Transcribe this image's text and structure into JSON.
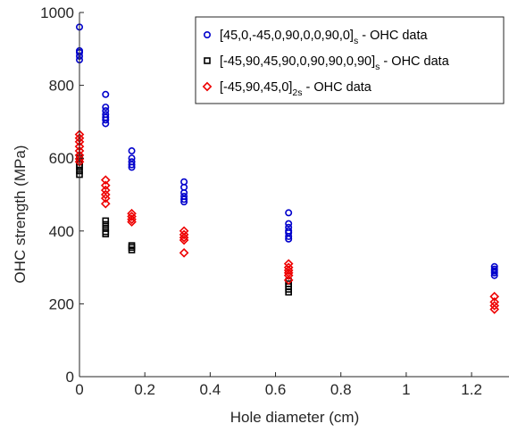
{
  "chart_data": {
    "type": "scatter",
    "xlabel": "Hole diameter (cm)",
    "ylabel": "OHC strength (MPa)",
    "xlim": [
      0,
      1.32
    ],
    "ylim": [
      0,
      1000
    ],
    "xticks": [
      0,
      0.2,
      0.4,
      0.6,
      0.8,
      1,
      1.2
    ],
    "xtick_labels": [
      "0",
      "0.2",
      "0.4",
      "0.6",
      "0.8",
      "1",
      "1.2"
    ],
    "yticks": [
      0,
      200,
      400,
      600,
      800,
      1000
    ],
    "ytick_labels": [
      "0",
      "200",
      "400",
      "600",
      "800",
      "1000"
    ],
    "grid": false,
    "legend_position": "top-right",
    "series": [
      {
        "name": "[45,0,-45,0,90,0,0,90,0]s - OHC data",
        "legend_main": "[45,0,-45,0,90,0,0,90,0]",
        "legend_sub": "s",
        "legend_suffix": " - OHC data",
        "marker": "circle",
        "color": "#0000cc",
        "points": [
          [
            0,
            960
          ],
          [
            0,
            895
          ],
          [
            0,
            890
          ],
          [
            0,
            880
          ],
          [
            0,
            870
          ],
          [
            0.08,
            775
          ],
          [
            0.08,
            740
          ],
          [
            0.08,
            730
          ],
          [
            0.08,
            720
          ],
          [
            0.08,
            712
          ],
          [
            0.08,
            705
          ],
          [
            0.08,
            695
          ],
          [
            0.16,
            620
          ],
          [
            0.16,
            600
          ],
          [
            0.16,
            590
          ],
          [
            0.16,
            582
          ],
          [
            0.16,
            575
          ],
          [
            0.32,
            535
          ],
          [
            0.32,
            520
          ],
          [
            0.32,
            505
          ],
          [
            0.32,
            495
          ],
          [
            0.32,
            487
          ],
          [
            0.32,
            480
          ],
          [
            0.64,
            450
          ],
          [
            0.64,
            420
          ],
          [
            0.64,
            410
          ],
          [
            0.64,
            400
          ],
          [
            0.64,
            395
          ],
          [
            0.64,
            385
          ],
          [
            0.64,
            378
          ],
          [
            1.27,
            302
          ],
          [
            1.27,
            295
          ],
          [
            1.27,
            290
          ],
          [
            1.27,
            285
          ],
          [
            1.27,
            278
          ]
        ]
      },
      {
        "name": "[-45,90,45,90,0,90,90,0,90]s - OHC data",
        "legend_main": "[-45,90,45,90,0,90,90,0,90]",
        "legend_sub": "s",
        "legend_suffix": " - OHC data",
        "marker": "square",
        "color": "#000000",
        "points": [
          [
            0,
            600
          ],
          [
            0,
            590
          ],
          [
            0,
            582
          ],
          [
            0,
            575
          ],
          [
            0,
            565
          ],
          [
            0,
            555
          ],
          [
            0.08,
            428
          ],
          [
            0.08,
            418
          ],
          [
            0.08,
            408
          ],
          [
            0.08,
            398
          ],
          [
            0.08,
            392
          ],
          [
            0.16,
            360
          ],
          [
            0.16,
            355
          ],
          [
            0.16,
            348
          ],
          [
            0.64,
            262
          ],
          [
            0.64,
            255
          ],
          [
            0.64,
            248
          ],
          [
            0.64,
            240
          ],
          [
            0.64,
            232
          ]
        ]
      },
      {
        "name": "[-45,90,45,0]2s - OHC data",
        "legend_main": "[-45,90,45,0]",
        "legend_sub": "2s",
        "legend_suffix": " - OHC data",
        "marker": "diamond",
        "color": "#ee0000",
        "points": [
          [
            0,
            665
          ],
          [
            0,
            655
          ],
          [
            0,
            645
          ],
          [
            0,
            632
          ],
          [
            0,
            620
          ],
          [
            0,
            608
          ],
          [
            0,
            598
          ],
          [
            0,
            590
          ],
          [
            0.08,
            540
          ],
          [
            0.08,
            525
          ],
          [
            0.08,
            512
          ],
          [
            0.08,
            500
          ],
          [
            0.08,
            490
          ],
          [
            0.08,
            475
          ],
          [
            0.16,
            448
          ],
          [
            0.16,
            440
          ],
          [
            0.16,
            432
          ],
          [
            0.16,
            425
          ],
          [
            0.32,
            400
          ],
          [
            0.32,
            390
          ],
          [
            0.32,
            382
          ],
          [
            0.32,
            375
          ],
          [
            0.32,
            340
          ],
          [
            0.64,
            310
          ],
          [
            0.64,
            300
          ],
          [
            0.64,
            292
          ],
          [
            0.64,
            285
          ],
          [
            0.64,
            278
          ],
          [
            0.64,
            265
          ],
          [
            1.27,
            220
          ],
          [
            1.27,
            205
          ],
          [
            1.27,
            195
          ],
          [
            1.27,
            185
          ]
        ]
      }
    ]
  }
}
